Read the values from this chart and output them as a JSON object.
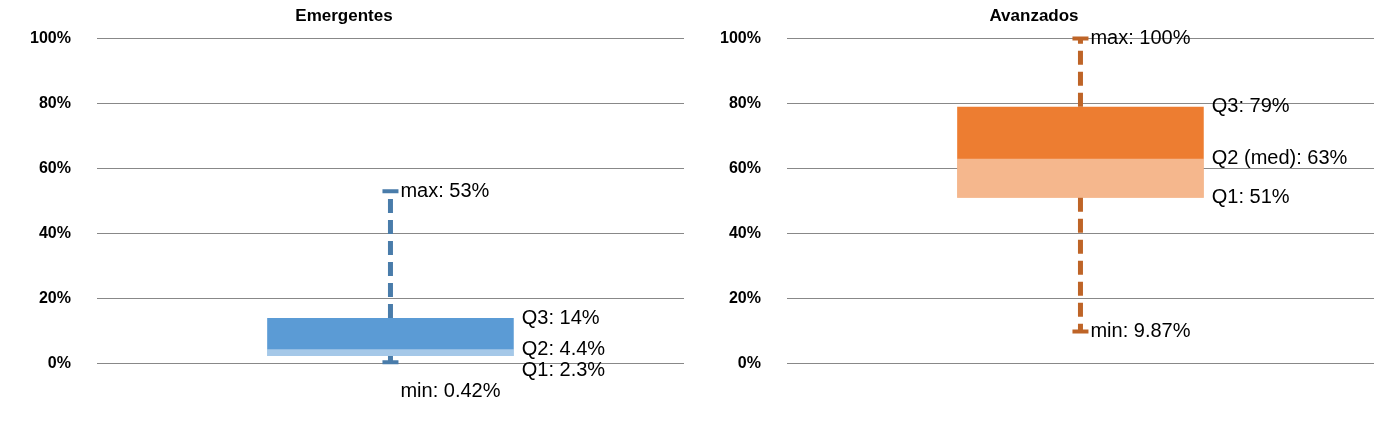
{
  "chart_data": [
    {
      "type": "box",
      "title": "Emergentes",
      "categories": [
        null
      ],
      "series": [
        {
          "color": "#5b9bd5",
          "boxes": [
            {
              "low": 0.42,
              "q1": 2.3,
              "median": 4.4,
              "q3": 14,
              "high": 53
            }
          ]
        }
      ],
      "ylim": [
        0,
        100
      ],
      "yticks": [
        {
          "value": 0,
          "label": "0%"
        },
        {
          "value": 20,
          "label": "20%"
        },
        {
          "value": 40,
          "label": "40%"
        },
        {
          "value": 60,
          "label": "60%"
        },
        {
          "value": 80,
          "label": "80%"
        },
        {
          "value": 100,
          "label": "100%"
        }
      ],
      "grid": "y",
      "line_style": "dashed",
      "annotations": [
        "max: 53%",
        "Q3: 14%",
        "Q2: 4.4%",
        "Q1: 2.3%",
        "min: 0.42%"
      ]
    },
    {
      "type": "box",
      "title": "Avanzados",
      "categories": [
        null
      ],
      "series": [
        {
          "color": "#ed7d31",
          "boxes": [
            {
              "low": 9.87,
              "q1": 51,
              "median": 63,
              "q3": 79,
              "high": 100
            }
          ]
        }
      ],
      "ylim": [
        0,
        100
      ],
      "yticks": [
        {
          "value": 0,
          "label": "0%"
        },
        {
          "value": 20,
          "label": "20%"
        },
        {
          "value": 40,
          "label": "40%"
        },
        {
          "value": 60,
          "label": "60%"
        },
        {
          "value": 80,
          "label": "80%"
        },
        {
          "value": 100,
          "label": "100%"
        }
      ],
      "grid": "y",
      "line_style": "dashed",
      "annotations": [
        "max: 100%",
        "Q3: 79%",
        "Q2 (med): 63%",
        "Q1: 51%",
        "min: 9.87%"
      ]
    }
  ]
}
